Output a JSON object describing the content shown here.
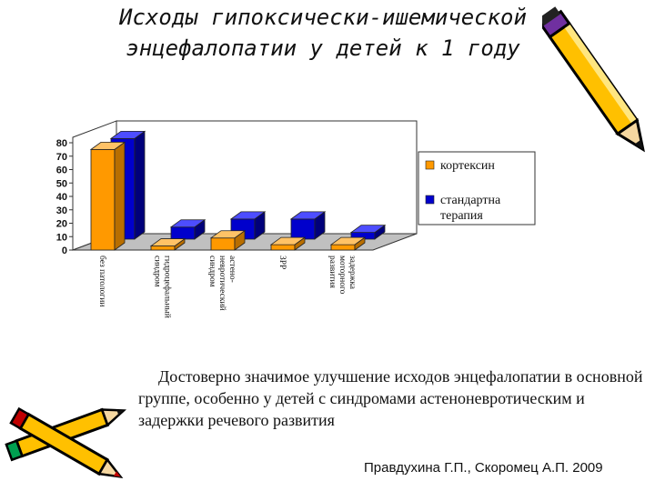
{
  "title_line1": "Исходы гипоксически-ишемической",
  "title_line2": "энцефалопатии у детей к 1 году",
  "chart_data": {
    "type": "bar",
    "categories": [
      "без патологии",
      "гидроцефальный синдром",
      "астено-невротический синдром",
      "ЗРР",
      "задержка моторного развития"
    ],
    "category_lines": [
      [
        "без патологии"
      ],
      [
        "гидроцефальный",
        "синдром"
      ],
      [
        "астено-",
        "невротический",
        "синдром"
      ],
      [
        "ЗРР"
      ],
      [
        "задержка",
        "моторного",
        "развития"
      ]
    ],
    "series": [
      {
        "name": "кортексин",
        "values": [
          75,
          3,
          9,
          4,
          4
        ],
        "color": "#FF9900"
      },
      {
        "name": "стандартна терапия",
        "values": [
          75,
          9,
          15,
          15,
          5
        ],
        "color": "#0000CC"
      }
    ],
    "legend_lines": [
      [
        "кортексин"
      ],
      [
        "стандартна",
        "терапия"
      ]
    ],
    "y_ticks": [
      0,
      10,
      20,
      30,
      40,
      50,
      60,
      70,
      80
    ],
    "ylim": [
      0,
      80
    ],
    "grid": false,
    "legend_position": "right"
  },
  "conclusion": "Достоверно значимое улучшение исходов энцефалопатии в основной группе, особенно у детей с синдромами астеноневротическим и задержки речевого развития",
  "authors": "Правдухина  Г.П., Скоромец А.П. 2009",
  "colors": {
    "orange": "#FF9900",
    "blue": "#0000CC",
    "pencil_yellow": "#FFC000"
  },
  "icons": [
    "pencil-icon",
    "crossed-pencils-icon"
  ]
}
